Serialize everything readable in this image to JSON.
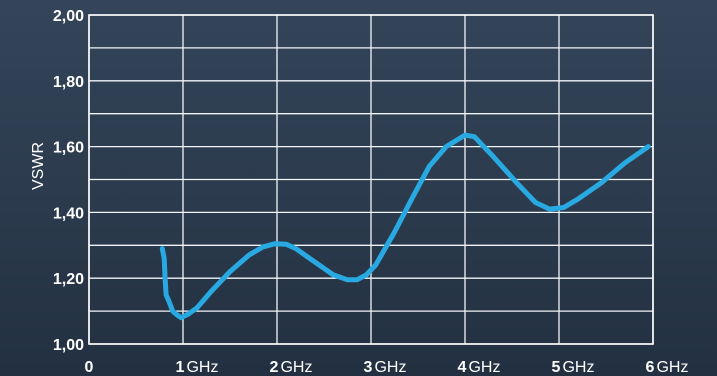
{
  "chart_data": {
    "type": "line",
    "title": "",
    "ylabel": "VSWR",
    "xlabel": "",
    "xlim": [
      0,
      6
    ],
    "ylim": [
      1.0,
      2.0
    ],
    "grid": true,
    "x_ticks": [
      {
        "value": 0,
        "num": "0",
        "unit": ""
      },
      {
        "value": 1,
        "num": "1",
        "unit": "GHz"
      },
      {
        "value": 2,
        "num": "2",
        "unit": "GHz"
      },
      {
        "value": 3,
        "num": "3",
        "unit": "GHz"
      },
      {
        "value": 4,
        "num": "4",
        "unit": "GHz"
      },
      {
        "value": 5,
        "num": "5",
        "unit": "GHz"
      },
      {
        "value": 6,
        "num": "6",
        "unit": "GHz"
      }
    ],
    "y_ticks": [
      {
        "value": 1.0,
        "label": "1,00"
      },
      {
        "value": 1.2,
        "label": "1,20"
      },
      {
        "value": 1.4,
        "label": "1,40"
      },
      {
        "value": 1.6,
        "label": "1,60"
      },
      {
        "value": 1.8,
        "label": "1,80"
      },
      {
        "value": 2.0,
        "label": "2,00"
      }
    ],
    "series": [
      {
        "color": "#29a9e1",
        "points": [
          [
            0.78,
            1.29
          ],
          [
            0.8,
            1.26
          ],
          [
            0.81,
            1.2
          ],
          [
            0.82,
            1.15
          ],
          [
            0.85,
            1.13
          ],
          [
            0.89,
            1.1
          ],
          [
            0.93,
            1.09
          ],
          [
            0.98,
            1.08
          ],
          [
            1.05,
            1.09
          ],
          [
            1.15,
            1.11
          ],
          [
            1.3,
            1.16
          ],
          [
            1.5,
            1.22
          ],
          [
            1.7,
            1.27
          ],
          [
            1.85,
            1.295
          ],
          [
            1.98,
            1.305
          ],
          [
            2.1,
            1.303
          ],
          [
            2.2,
            1.29
          ],
          [
            2.4,
            1.25
          ],
          [
            2.6,
            1.21
          ],
          [
            2.75,
            1.195
          ],
          [
            2.85,
            1.195
          ],
          [
            2.95,
            1.21
          ],
          [
            3.05,
            1.24
          ],
          [
            3.25,
            1.34
          ],
          [
            3.45,
            1.45
          ],
          [
            3.62,
            1.54
          ],
          [
            3.8,
            1.6
          ],
          [
            4.0,
            1.635
          ],
          [
            4.1,
            1.63
          ],
          [
            4.3,
            1.57
          ],
          [
            4.55,
            1.49
          ],
          [
            4.75,
            1.43
          ],
          [
            4.9,
            1.41
          ],
          [
            5.05,
            1.415
          ],
          [
            5.2,
            1.44
          ],
          [
            5.45,
            1.49
          ],
          [
            5.7,
            1.55
          ],
          [
            5.95,
            1.6
          ]
        ]
      }
    ]
  }
}
